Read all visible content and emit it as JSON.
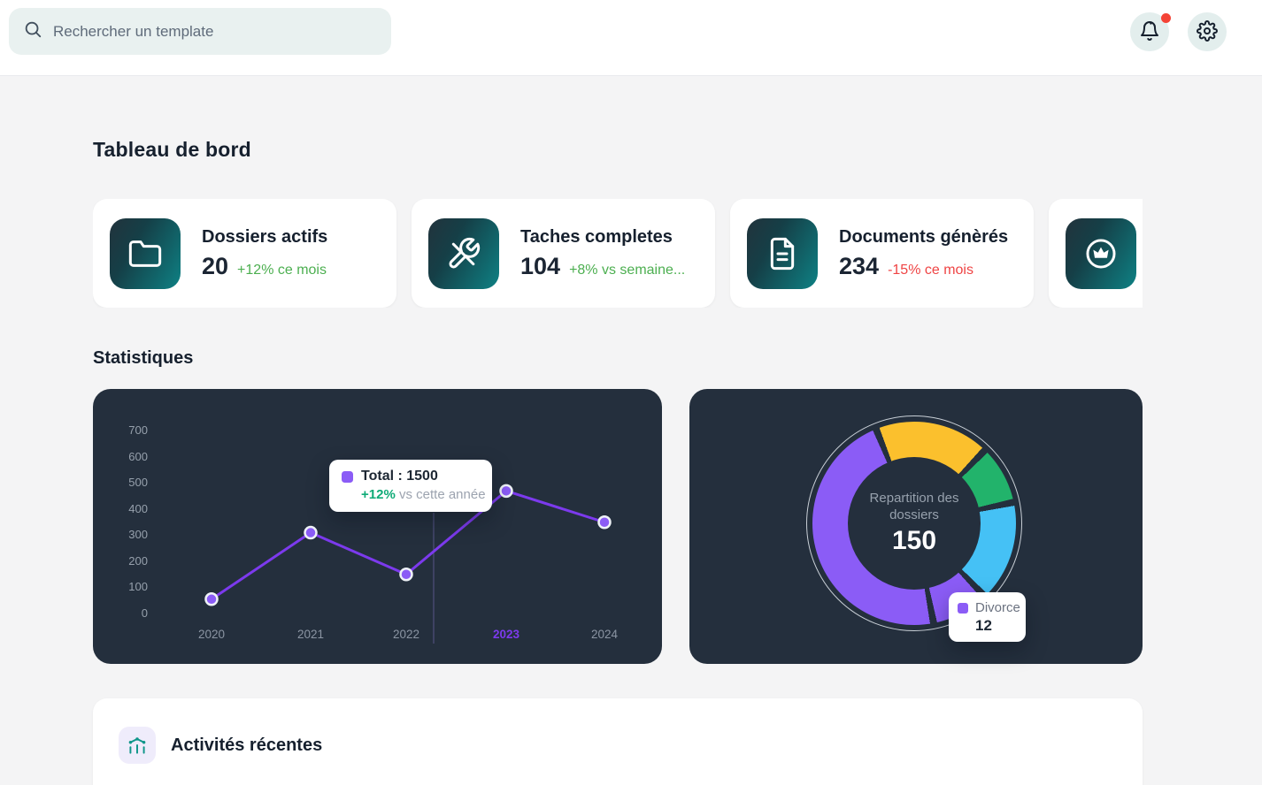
{
  "topbar": {
    "search": {
      "placeholder": "Rechercher un template"
    },
    "notifications": {
      "has_unread": true
    }
  },
  "headings": {
    "dashboard": "Tableau de bord",
    "statistics": "Statistiques"
  },
  "stat_cards": [
    {
      "title": "Dossiers actifs",
      "value": "20",
      "change": "+12% ce mois",
      "trend": "up",
      "icon": "folder-icon"
    },
    {
      "title": "Taches completes",
      "value": "104",
      "change": "+8% vs semaine...",
      "trend": "up",
      "icon": "tools-icon"
    },
    {
      "title": "Documents génèrés",
      "value": "234",
      "change": "-15% ce mois",
      "trend": "down",
      "icon": "document-icon"
    },
    {
      "title": "",
      "value": "",
      "change": "",
      "trend": "",
      "icon": "crown-icon"
    }
  ],
  "activity": {
    "title": "Activités récentes"
  },
  "colors": {
    "accent_purple": "#7c3aed",
    "dot_purple": "#8b5cf6",
    "green": "#4caf50",
    "red": "#ef4444",
    "panel_dark": "#242f3d",
    "crosshair": "rgba(150,132,230,0.45)"
  },
  "chart_data": [
    {
      "type": "line",
      "title": "",
      "x_labels": [
        "2020",
        "2021",
        "2022",
        "2023",
        "2024"
      ],
      "highlighted_x_label": "2023",
      "series": [
        {
          "name": "Total",
          "values": [
            55,
            310,
            150,
            470,
            350
          ]
        }
      ],
      "y_ticks": [
        0,
        100,
        200,
        300,
        400,
        500,
        600,
        700
      ],
      "ylim": [
        0,
        700
      ],
      "grid": false,
      "legend": "hidden",
      "line_color": "#7c3aed",
      "dot_color": "#8b5cf6",
      "tooltip": {
        "title": "Total : 1500",
        "change": "+12%",
        "note": "vs cette année"
      }
    },
    {
      "type": "donut",
      "title": "Repartition des dossiers",
      "center_value": "150",
      "rotation_deg": -20,
      "segments": [
        {
          "label": "",
          "color": "#fbc02d",
          "start_deg": 0,
          "end_deg": 62
        },
        {
          "label": "",
          "color": "#22b36b",
          "start_deg": 66,
          "end_deg": 96
        },
        {
          "label": "",
          "color": "#45c1f5",
          "start_deg": 100,
          "end_deg": 154
        },
        {
          "label": "Divorce",
          "value": 12,
          "hovered": true,
          "color": "#8b5cf6",
          "start_deg": 158,
          "end_deg": 187
        },
        {
          "label": "",
          "color": "#8b5cf6",
          "start_deg": 191,
          "end_deg": 356
        }
      ],
      "tooltip": {
        "label": "Divorce",
        "value": "12"
      }
    }
  ]
}
